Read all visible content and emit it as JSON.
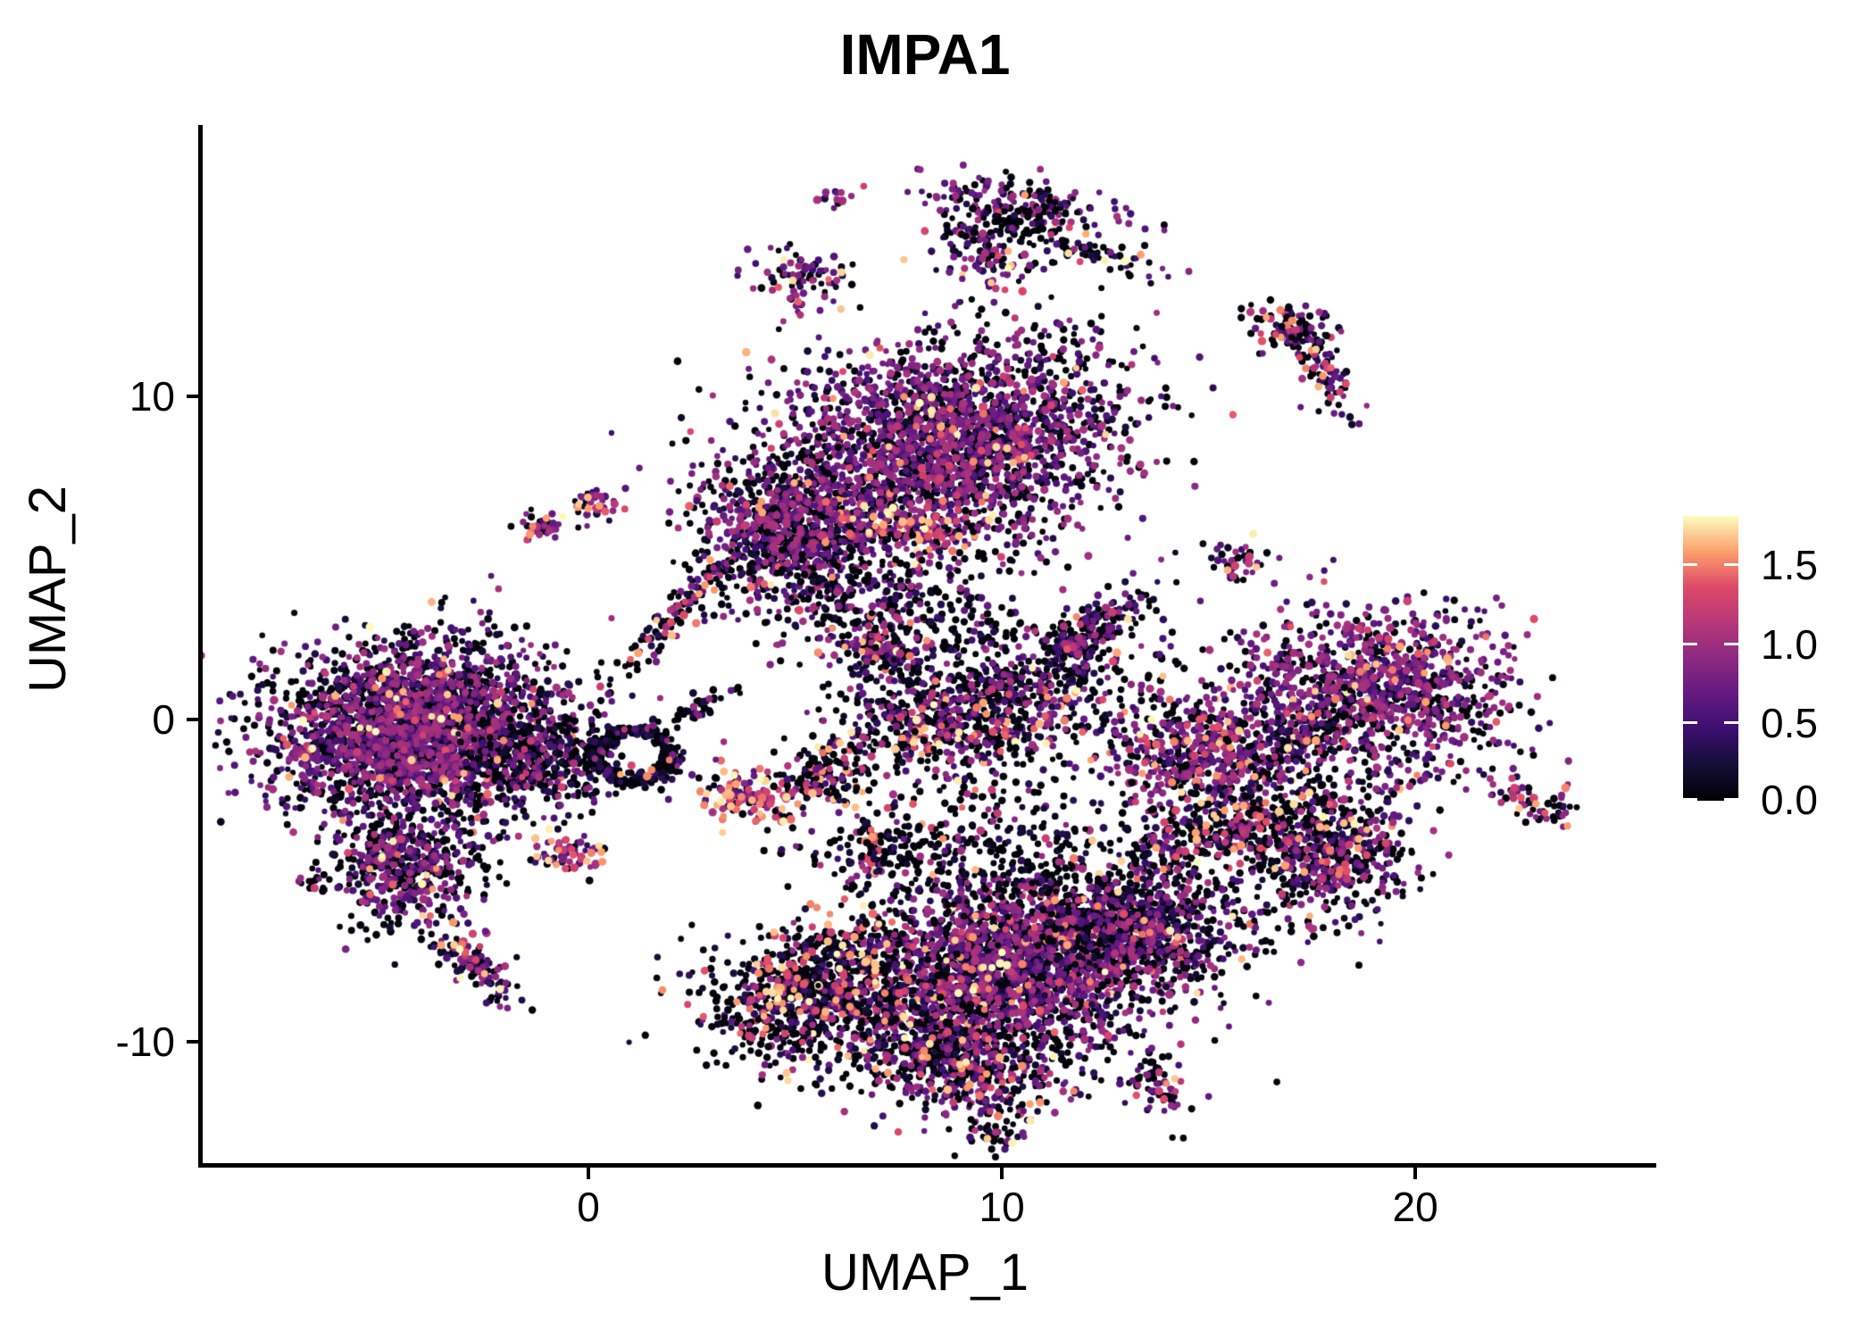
{
  "title": "IMPA1",
  "chart_data": {
    "type": "scatter",
    "subtype": "umap-feature-plot",
    "title": "IMPA1",
    "xlabel": "UMAP_1",
    "ylabel": "UMAP_2",
    "grid": false,
    "background": "#ffffff",
    "point_color_meaning": "IMPA1 expression level",
    "axes": {
      "x": {
        "label": "UMAP_1",
        "ticks": [
          0,
          10,
          20
        ],
        "range": [
          -9.44,
          25.72
        ]
      },
      "y": {
        "label": "UMAP_2",
        "ticks": [
          10,
          0,
          -10
        ],
        "range": [
          -13.75,
          18.42
        ]
      }
    },
    "colorbar": {
      "ticks": [
        0.0,
        0.5,
        1.0,
        1.5
      ],
      "vmax": 1.8,
      "palette": "magma",
      "stops": [
        [
          0.0,
          "#000004"
        ],
        [
          0.125,
          "#140E36"
        ],
        [
          0.25,
          "#3B0F70"
        ],
        [
          0.375,
          "#641A80"
        ],
        [
          0.5,
          "#8C2981"
        ],
        [
          0.625,
          "#B73779"
        ],
        [
          0.75,
          "#DE4968"
        ],
        [
          0.875,
          "#FD9F6C"
        ],
        [
          1.0,
          "#FCFDBF"
        ]
      ]
    },
    "clusters": [
      {
        "c": [
          5.9,
          16.2
        ],
        "s": [
          0.18,
          0.22
        ],
        "r": 0,
        "n": 14,
        "p": [
          0.25,
          0.7,
          0.05
        ]
      },
      {
        "c": [
          5.1,
          13.6
        ],
        "s": [
          0.55,
          0.5
        ],
        "r": -20,
        "n": 85,
        "p": [
          0.4,
          0.5,
          0.1
        ]
      },
      {
        "c": [
          10.3,
          16.1
        ],
        "s": [
          1.4,
          0.35
        ],
        "r": -12,
        "n": 130,
        "p": [
          0.38,
          0.57,
          0.05
        ]
      },
      {
        "c": [
          9.35,
          14.7
        ],
        "s": [
          0.5,
          0.75
        ],
        "r": 20,
        "n": 95,
        "p": [
          0.55,
          0.4,
          0.05
        ]
      },
      {
        "c": [
          10.6,
          15.3
        ],
        "s": [
          0.85,
          0.5
        ],
        "r": 0,
        "n": 85,
        "p": [
          0.85,
          0.12,
          0.03
        ]
      },
      {
        "c": [
          12.2,
          14.4
        ],
        "s": [
          0.85,
          0.22
        ],
        "r": -20,
        "n": 60,
        "p": [
          0.6,
          0.28,
          0.12
        ]
      },
      {
        "c": [
          9.9,
          13.9
        ],
        "s": [
          0.5,
          0.3
        ],
        "r": 0,
        "n": 25,
        "p": [
          0.25,
          0.4,
          0.35
        ]
      },
      {
        "c": [
          16.9,
          12.2
        ],
        "s": [
          0.5,
          0.35
        ],
        "r": 0,
        "n": 85,
        "p": [
          0.5,
          0.4,
          0.1
        ]
      },
      {
        "c": [
          17.6,
          10.9
        ],
        "s": [
          0.95,
          0.28
        ],
        "r": -62,
        "n": 95,
        "p": [
          0.55,
          0.25,
          0.2
        ]
      },
      {
        "c": [
          8.8,
          8.6
        ],
        "s": [
          2.1,
          1.5
        ],
        "r": 12,
        "n": 2300,
        "p": [
          0.47,
          0.48,
          0.05
        ]
      },
      {
        "c": [
          4.9,
          5.9
        ],
        "s": [
          1.15,
          1.25
        ],
        "r": 0,
        "n": 950,
        "p": [
          0.55,
          0.42,
          0.03
        ]
      },
      {
        "c": [
          7.3,
          5.9
        ],
        "s": [
          1.05,
          0.5
        ],
        "r": -15,
        "n": 180,
        "p": [
          0.28,
          0.36,
          0.36
        ]
      },
      {
        "c": [
          7.0,
          3.4
        ],
        "s": [
          1.6,
          1.0
        ],
        "r": 0,
        "n": 260,
        "p": [
          0.78,
          0.18,
          0.04
        ]
      },
      {
        "c": [
          -1.2,
          6.0
        ],
        "s": [
          0.32,
          0.22
        ],
        "r": -30,
        "n": 40,
        "p": [
          0.3,
          0.5,
          0.2
        ]
      },
      {
        "c": [
          -0.05,
          6.7
        ],
        "s": [
          0.3,
          0.25
        ],
        "r": 0,
        "n": 40,
        "p": [
          0.3,
          0.5,
          0.2
        ]
      },
      {
        "c": [
          2.0,
          3.3
        ],
        "s": [
          1.3,
          0.22
        ],
        "r": 53,
        "n": 110,
        "p": [
          0.62,
          0.23,
          0.15
        ]
      },
      {
        "c": [
          -4.3,
          -0.3
        ],
        "s": [
          1.7,
          1.3
        ],
        "r": 8,
        "n": 2700,
        "p": [
          0.56,
          0.41,
          0.03
        ]
      },
      {
        "c": [
          -4.6,
          -4.6
        ],
        "s": [
          0.9,
          0.85
        ],
        "r": 0,
        "n": 500,
        "p": [
          0.6,
          0.36,
          0.04
        ]
      },
      {
        "c": [
          -2.9,
          -7.6
        ],
        "s": [
          0.75,
          0.28
        ],
        "r": -48,
        "n": 130,
        "p": [
          0.5,
          0.3,
          0.2
        ]
      },
      {
        "c": [
          -6.7,
          -4.9
        ],
        "s": [
          0.22,
          0.18
        ],
        "r": 0,
        "n": 16,
        "p": [
          0.4,
          0.35,
          0.25
        ]
      },
      {
        "c": [
          -1.4,
          -1.3
        ],
        "s": [
          0.9,
          0.7
        ],
        "r": 0,
        "n": 350,
        "p": [
          0.75,
          0.22,
          0.03
        ]
      },
      {
        "c": [
          1.0,
          -1.1
        ],
        "s": [
          0.3,
          0.3
        ],
        "r": 0,
        "n": 280,
        "p": [
          0.9,
          0.07,
          0.03
        ],
        "ring": 0.95
      },
      {
        "c": [
          2.6,
          0.4
        ],
        "s": [
          0.8,
          0.15
        ],
        "r": 35,
        "n": 45,
        "p": [
          0.85,
          0.1,
          0.05
        ]
      },
      {
        "c": [
          -0.6,
          -4.2
        ],
        "s": [
          0.45,
          0.3
        ],
        "r": -15,
        "n": 65,
        "p": [
          0.3,
          0.4,
          0.3
        ]
      },
      {
        "c": [
          3.7,
          -2.4
        ],
        "s": [
          0.6,
          0.4
        ],
        "r": -20,
        "n": 120,
        "p": [
          0.28,
          0.32,
          0.4
        ]
      },
      {
        "c": [
          5.6,
          -1.8
        ],
        "s": [
          0.55,
          0.5
        ],
        "r": 0,
        "n": 130,
        "p": [
          0.72,
          0.13,
          0.15
        ]
      },
      {
        "c": [
          6.7,
          -4.0
        ],
        "s": [
          0.2,
          0.42
        ],
        "r": 0,
        "n": 40,
        "p": [
          0.45,
          0.3,
          0.25
        ]
      },
      {
        "c": [
          9.4,
          0.4
        ],
        "s": [
          1.9,
          0.8
        ],
        "r": 15,
        "n": 750,
        "p": [
          0.68,
          0.26,
          0.06
        ]
      },
      {
        "c": [
          11.9,
          2.6
        ],
        "s": [
          1.0,
          0.35
        ],
        "r": 45,
        "n": 220,
        "p": [
          0.6,
          0.35,
          0.05
        ]
      },
      {
        "c": [
          6.9,
          2.1
        ],
        "s": [
          0.5,
          0.35
        ],
        "r": -25,
        "n": 90,
        "p": [
          0.4,
          0.5,
          0.1
        ]
      },
      {
        "c": [
          9.0,
          -0.6
        ],
        "s": [
          1.6,
          0.3
        ],
        "r": 8,
        "n": 90,
        "p": [
          0.3,
          0.4,
          0.3
        ]
      },
      {
        "c": [
          14.9,
          -1.1
        ],
        "s": [
          1.15,
          0.95
        ],
        "r": 0,
        "n": 600,
        "p": [
          0.45,
          0.48,
          0.07
        ]
      },
      {
        "c": [
          18.9,
          0.9
        ],
        "s": [
          1.7,
          1.2
        ],
        "r": -10,
        "n": 1100,
        "p": [
          0.42,
          0.5,
          0.08
        ]
      },
      {
        "c": [
          17.2,
          -0.6
        ],
        "s": [
          0.8,
          0.4
        ],
        "r": 35,
        "n": 150,
        "p": [
          0.7,
          0.25,
          0.05
        ]
      },
      {
        "c": [
          15.6,
          4.8
        ],
        "s": [
          0.45,
          0.3
        ],
        "r": -25,
        "n": 40,
        "p": [
          0.4,
          0.4,
          0.2
        ]
      },
      {
        "c": [
          10.2,
          -7.6
        ],
        "s": [
          2.2,
          1.4
        ],
        "r": 20,
        "n": 2700,
        "p": [
          0.55,
          0.4,
          0.05
        ]
      },
      {
        "c": [
          5.4,
          -8.3
        ],
        "s": [
          1.4,
          0.9
        ],
        "r": 30,
        "n": 800,
        "p": [
          0.74,
          0.11,
          0.15
        ]
      },
      {
        "c": [
          8.8,
          -10.6
        ],
        "s": [
          1.4,
          0.75
        ],
        "r": -10,
        "n": 550,
        "p": [
          0.6,
          0.28,
          0.12
        ]
      },
      {
        "c": [
          13.3,
          -6.4
        ],
        "s": [
          1.2,
          1.0
        ],
        "r": 15,
        "n": 650,
        "p": [
          0.68,
          0.28,
          0.04
        ]
      },
      {
        "c": [
          8.6,
          -4.3
        ],
        "s": [
          1.8,
          0.8
        ],
        "r": 0,
        "n": 260,
        "p": [
          0.85,
          0.1,
          0.05
        ]
      },
      {
        "c": [
          13.6,
          -11.3
        ],
        "s": [
          0.35,
          0.6
        ],
        "r": 20,
        "n": 70,
        "p": [
          0.55,
          0.35,
          0.1
        ]
      },
      {
        "c": [
          9.8,
          -12.6
        ],
        "s": [
          0.5,
          0.35
        ],
        "r": 40,
        "n": 60,
        "p": [
          0.6,
          0.3,
          0.1
        ]
      },
      {
        "c": [
          17.8,
          -4.1
        ],
        "s": [
          1.0,
          1.1
        ],
        "r": 15,
        "n": 600,
        "p": [
          0.62,
          0.3,
          0.08
        ]
      },
      {
        "c": [
          15.2,
          -3.4
        ],
        "s": [
          1.2,
          0.5
        ],
        "r": 20,
        "n": 280,
        "p": [
          0.72,
          0.13,
          0.15
        ]
      },
      {
        "c": [
          22.8,
          -2.6
        ],
        "s": [
          0.55,
          0.25
        ],
        "r": -30,
        "n": 60,
        "p": [
          0.45,
          0.3,
          0.25
        ]
      },
      {
        "c": [
          9.5,
          -2.2
        ],
        "s": [
          2.0,
          1.0
        ],
        "r": 0,
        "n": 150,
        "p": [
          0.8,
          0.12,
          0.08
        ]
      },
      {
        "c": [
          8.6,
          2.3
        ],
        "s": [
          1.3,
          0.8
        ],
        "r": 0,
        "n": 120,
        "p": [
          0.75,
          0.2,
          0.05
        ]
      }
    ]
  }
}
